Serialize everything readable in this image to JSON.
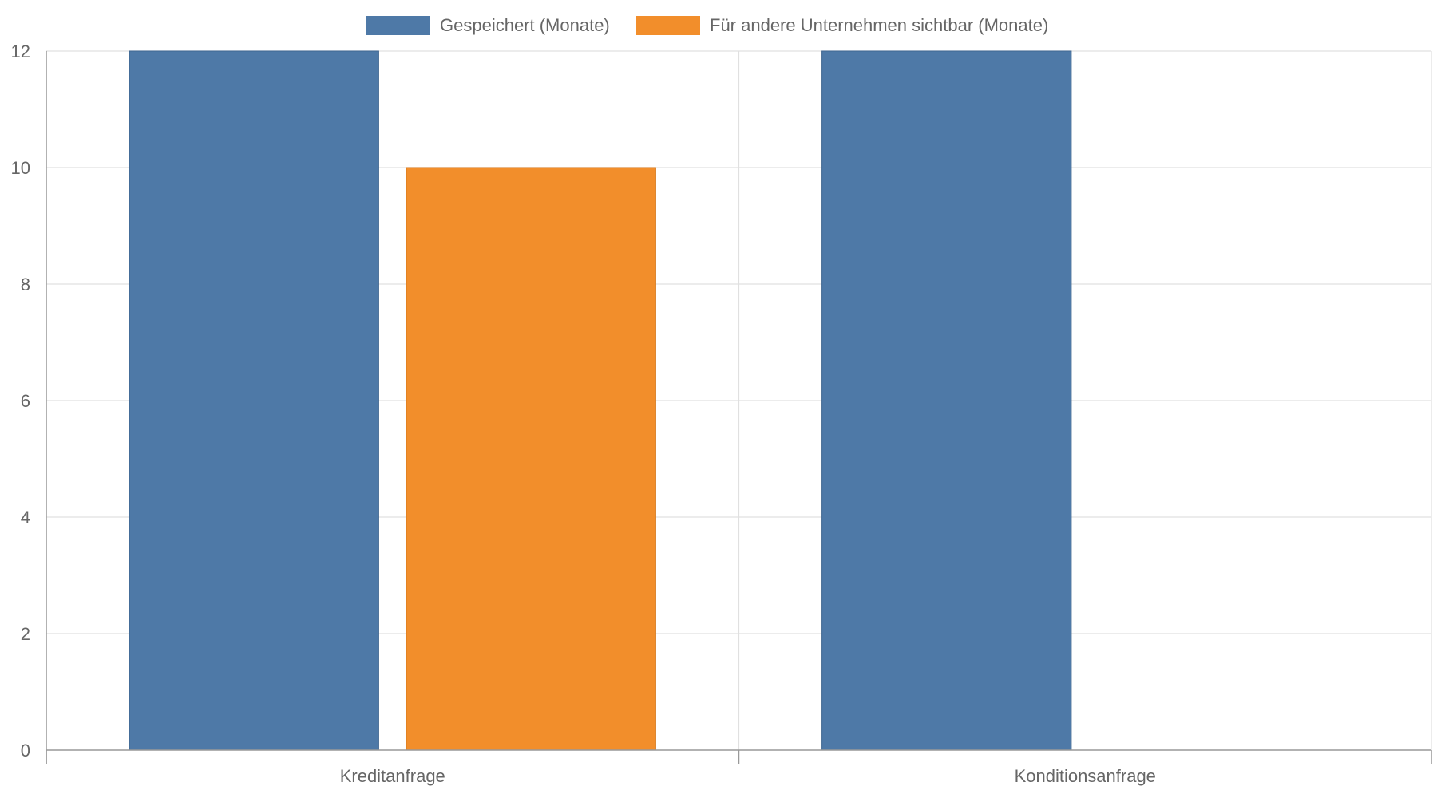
{
  "chart_data": {
    "type": "bar",
    "categories": [
      "Kreditanfrage",
      "Konditionsanfrage"
    ],
    "series": [
      {
        "name": "Gespeichert (Monate)",
        "values": [
          12,
          12
        ],
        "color": "#4e79a7"
      },
      {
        "name": "Für andere Unternehmen sichtbar (Monate)",
        "values": [
          10,
          0
        ],
        "color": "#f28e2b"
      }
    ],
    "ylim": [
      0,
      12
    ],
    "yticks": [
      0,
      2,
      4,
      6,
      8,
      10,
      12
    ],
    "grid": true,
    "legend": "top-center",
    "title": "",
    "xlabel": "",
    "ylabel": ""
  }
}
